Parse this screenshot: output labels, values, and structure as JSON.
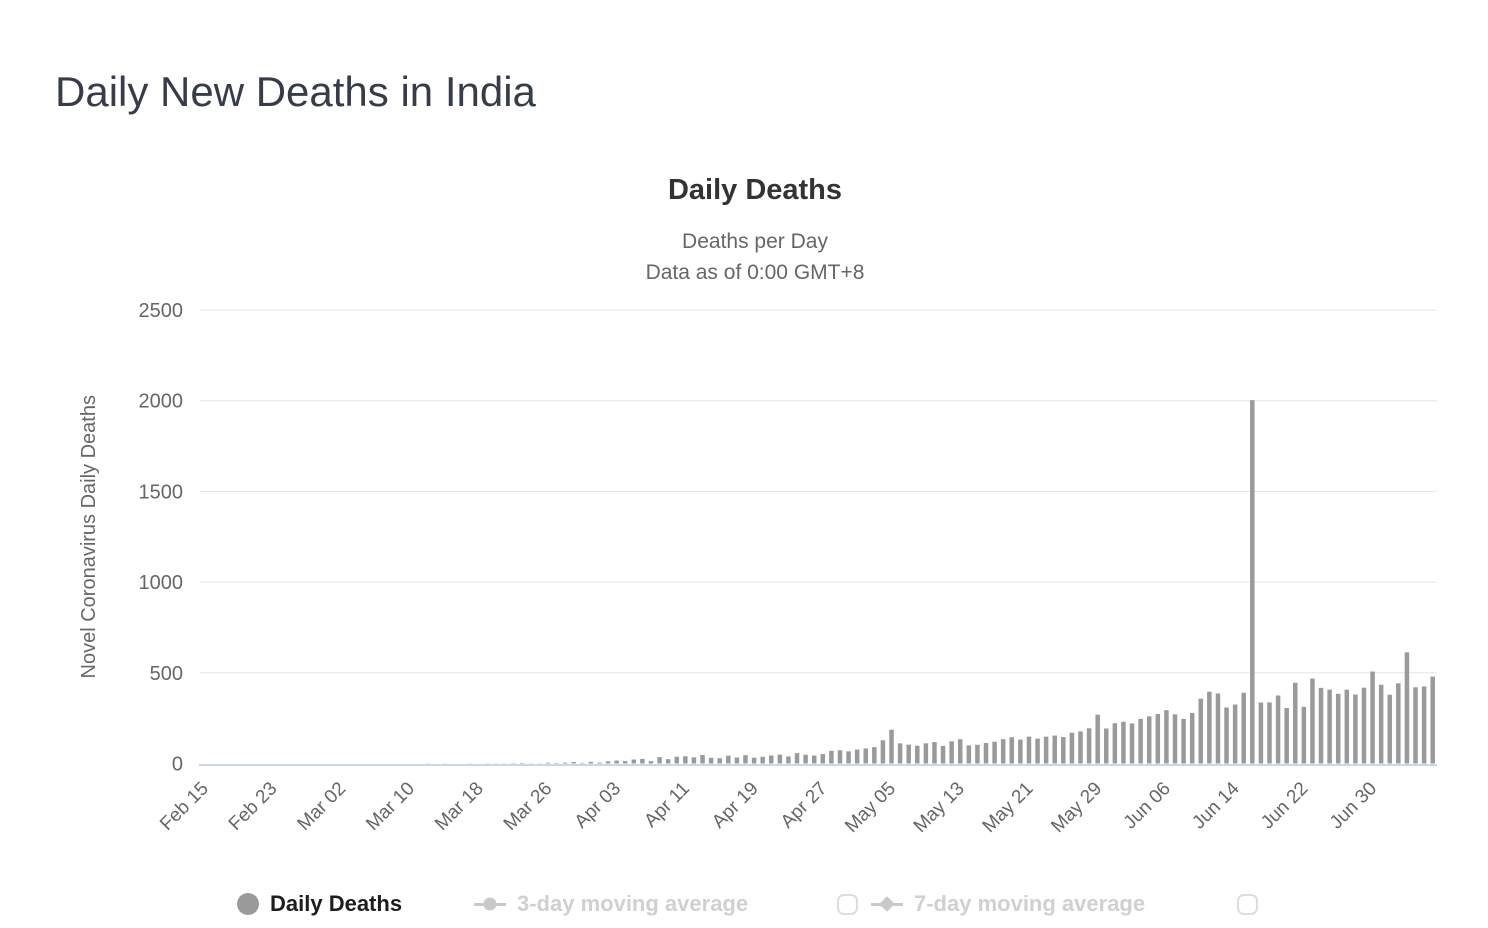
{
  "page": {
    "title": "Daily New Deaths in India"
  },
  "chart": {
    "title": "Daily Deaths",
    "subtitle_line1": "Deaths per Day",
    "subtitle_line2": "Data as of 0:00 GMT+8"
  },
  "legend": {
    "items": [
      {
        "label": "Daily Deaths",
        "marker": "circle",
        "active": true
      },
      {
        "label": "3-day moving average",
        "marker": "line-circle",
        "active": false,
        "checkbox_checked": false
      },
      {
        "label": "7-day moving average",
        "marker": "line-diamond",
        "active": false,
        "checkbox_checked": false
      }
    ]
  },
  "colors": {
    "bar": "#9a9a9a",
    "grid": "#e6e6e6",
    "axis_line": "#ccd6eb",
    "tick_text": "#666666",
    "title_text": "#333333",
    "page_title": "#363c49",
    "legend_active": "#1d1d1d",
    "legend_inactive": "#d0d0d0"
  },
  "chart_data": {
    "type": "bar",
    "title": "Daily Deaths",
    "subtitle": "Deaths per Day — Data as of 0:00 GMT+8",
    "xlabel": "",
    "ylabel": "Novel Coronavirus Daily Deaths",
    "ylim": [
      0,
      2500
    ],
    "y_ticks": [
      0,
      500,
      1000,
      1500,
      2000,
      2500
    ],
    "grid": "horizontal",
    "legend_position": "bottom",
    "x_tick_every": 8,
    "x_tick_labels": [
      "Feb 15",
      "Feb 23",
      "Mar 02",
      "Mar 10",
      "Mar 18",
      "Mar 26",
      "Apr 03",
      "Apr 11",
      "Apr 19",
      "Apr 27",
      "May 05",
      "May 13",
      "May 21",
      "May 29",
      "Jun 06",
      "Jun 14",
      "Jun 22",
      "Jun 30"
    ],
    "categories": [
      "Feb 15",
      "Feb 16",
      "Feb 17",
      "Feb 18",
      "Feb 19",
      "Feb 20",
      "Feb 21",
      "Feb 22",
      "Feb 23",
      "Feb 24",
      "Feb 25",
      "Feb 26",
      "Feb 27",
      "Feb 28",
      "Feb 29",
      "Mar 01",
      "Mar 02",
      "Mar 03",
      "Mar 04",
      "Mar 05",
      "Mar 06",
      "Mar 07",
      "Mar 08",
      "Mar 09",
      "Mar 10",
      "Mar 11",
      "Mar 12",
      "Mar 13",
      "Mar 14",
      "Mar 15",
      "Mar 16",
      "Mar 17",
      "Mar 18",
      "Mar 19",
      "Mar 20",
      "Mar 21",
      "Mar 22",
      "Mar 23",
      "Mar 24",
      "Mar 25",
      "Mar 26",
      "Mar 27",
      "Mar 28",
      "Mar 29",
      "Mar 30",
      "Mar 31",
      "Apr 01",
      "Apr 02",
      "Apr 03",
      "Apr 04",
      "Apr 05",
      "Apr 06",
      "Apr 07",
      "Apr 08",
      "Apr 09",
      "Apr 10",
      "Apr 11",
      "Apr 12",
      "Apr 13",
      "Apr 14",
      "Apr 15",
      "Apr 16",
      "Apr 17",
      "Apr 18",
      "Apr 19",
      "Apr 20",
      "Apr 21",
      "Apr 22",
      "Apr 23",
      "Apr 24",
      "Apr 25",
      "Apr 26",
      "Apr 27",
      "Apr 28",
      "Apr 29",
      "Apr 30",
      "May 01",
      "May 02",
      "May 03",
      "May 04",
      "May 05",
      "May 06",
      "May 07",
      "May 08",
      "May 09",
      "May 10",
      "May 11",
      "May 12",
      "May 13",
      "May 14",
      "May 15",
      "May 16",
      "May 17",
      "May 18",
      "May 19",
      "May 20",
      "May 21",
      "May 22",
      "May 23",
      "May 24",
      "May 25",
      "May 26",
      "May 27",
      "May 28",
      "May 29",
      "May 30",
      "May 31",
      "Jun 01",
      "Jun 02",
      "Jun 03",
      "Jun 04",
      "Jun 05",
      "Jun 06",
      "Jun 07",
      "Jun 08",
      "Jun 09",
      "Jun 10",
      "Jun 11",
      "Jun 12",
      "Jun 13",
      "Jun 14",
      "Jun 15",
      "Jun 16",
      "Jun 17",
      "Jun 18",
      "Jun 19",
      "Jun 20",
      "Jun 21",
      "Jun 22",
      "Jun 23",
      "Jun 24",
      "Jun 25",
      "Jun 26",
      "Jun 27",
      "Jun 28",
      "Jun 29",
      "Jun 30",
      "Jul 01",
      "Jul 02",
      "Jul 03",
      "Jul 04",
      "Jul 05",
      "Jul 06",
      "Jul 07"
    ],
    "values": [
      0,
      0,
      0,
      0,
      0,
      0,
      0,
      0,
      0,
      0,
      0,
      0,
      0,
      0,
      0,
      0,
      0,
      0,
      0,
      0,
      0,
      0,
      0,
      0,
      0,
      0,
      1,
      0,
      1,
      0,
      0,
      1,
      0,
      1,
      1,
      1,
      2,
      3,
      1,
      1,
      4,
      3,
      5,
      8,
      3,
      9,
      5,
      12,
      16,
      13,
      22,
      25,
      13,
      35,
      24,
      37,
      40,
      34,
      47,
      31,
      29,
      43,
      33,
      46,
      32,
      37,
      44,
      49,
      39,
      57,
      48,
      44,
      52,
      70,
      73,
      67,
      77,
      83,
      90,
      128,
      186,
      111,
      104,
      98,
      111,
      118,
      97,
      122,
      134,
      100,
      103,
      113,
      120,
      134,
      145,
      132,
      148,
      137,
      148,
      154,
      146,
      170,
      177,
      194,
      269,
      193,
      222,
      230,
      221,
      246,
      260,
      273,
      294,
      271,
      246,
      279,
      357,
      396,
      386,
      309,
      325,
      390,
      2003,
      336,
      337,
      375,
      306,
      445,
      312,
      468,
      417,
      407,
      384,
      407,
      380,
      418,
      507,
      434,
      379,
      442,
      613,
      420,
      425,
      479
    ]
  }
}
